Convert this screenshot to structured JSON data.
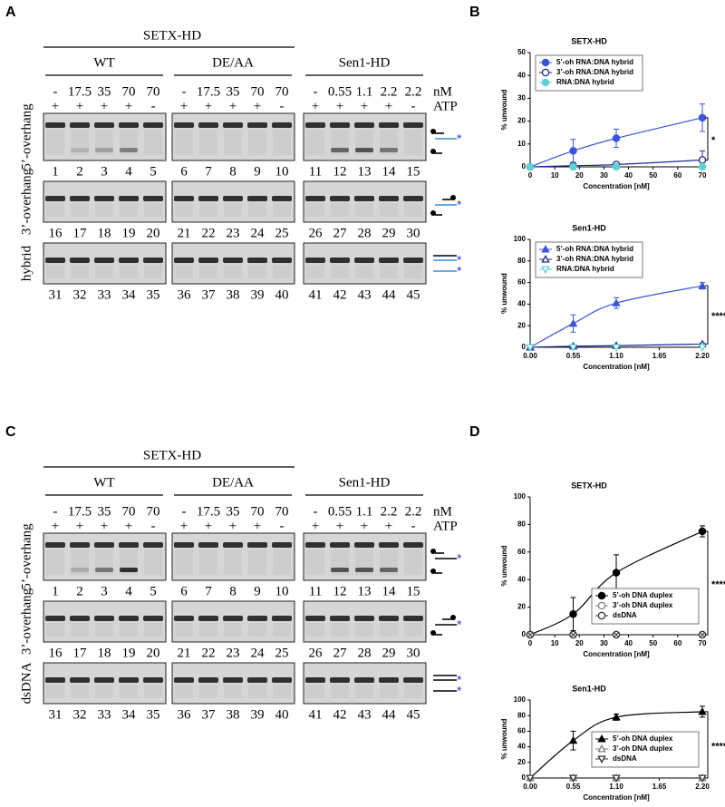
{
  "panels": [
    {
      "label": "A",
      "enzyme": "SETX-HD",
      "unit": "nM",
      "atp_label": "ATP",
      "groups": [
        {
          "name": "WT",
          "conc": [
            "-",
            "17.5",
            "35",
            "70",
            "70"
          ],
          "atp": [
            "+",
            "+",
            "+",
            "+",
            "-"
          ]
        },
        {
          "name": "DE/AA",
          "conc": [
            "-",
            "17.5",
            "35",
            "70",
            "70"
          ],
          "atp": [
            "+",
            "+",
            "+",
            "+",
            "-"
          ]
        },
        {
          "name": "Sen1-HD",
          "conc": [
            "-",
            "0.55",
            "1.1",
            "2.2",
            "2.2"
          ],
          "atp": [
            "+",
            "+",
            "+",
            "+",
            "-"
          ]
        }
      ],
      "rows": [
        {
          "label": "5’-overhang",
          "lanes": [
            [
              1,
              2,
              3,
              4,
              5
            ],
            [
              6,
              7,
              8,
              9,
              10
            ],
            [
              11,
              12,
              13,
              14,
              15
            ]
          ]
        },
        {
          "label": "3’-overhang",
          "lanes": [
            [
              16,
              17,
              18,
              19,
              20
            ],
            [
              21,
              22,
              23,
              24,
              25
            ],
            [
              26,
              27,
              28,
              29,
              30
            ]
          ]
        },
        {
          "label": "hybrid",
          "lanes": [
            [
              31,
              32,
              33,
              34,
              35
            ],
            [
              36,
              37,
              38,
              39,
              40
            ],
            [
              41,
              42,
              43,
              44,
              45
            ]
          ]
        }
      ]
    },
    {
      "label": "C",
      "enzyme": "SETX-HD",
      "unit": "nM",
      "atp_label": "ATP",
      "groups": [
        {
          "name": "WT",
          "conc": [
            "-",
            "17.5",
            "35",
            "70",
            "70"
          ],
          "atp": [
            "+",
            "+",
            "+",
            "+",
            "-"
          ]
        },
        {
          "name": "DE/AA",
          "conc": [
            "-",
            "17.5",
            "35",
            "70",
            "70"
          ],
          "atp": [
            "+",
            "+",
            "+",
            "+",
            "-"
          ]
        },
        {
          "name": "Sen1-HD",
          "conc": [
            "-",
            "0.55",
            "1.1",
            "2.2",
            "2.2"
          ],
          "atp": [
            "+",
            "+",
            "+",
            "+",
            "-"
          ]
        }
      ],
      "rows": [
        {
          "label": "5’-overhang",
          "lanes": [
            [
              1,
              2,
              3,
              4,
              5
            ],
            [
              6,
              7,
              8,
              9,
              10
            ],
            [
              11,
              12,
              13,
              14,
              15
            ]
          ]
        },
        {
          "label": "3’-overhang",
          "lanes": [
            [
              16,
              17,
              18,
              19,
              20
            ],
            [
              21,
              22,
              23,
              24,
              25
            ],
            [
              26,
              27,
              28,
              29,
              30
            ]
          ]
        },
        {
          "label": "dsDNA",
          "lanes": [
            [
              31,
              32,
              33,
              34,
              35
            ],
            [
              36,
              37,
              38,
              39,
              40
            ],
            [
              41,
              42,
              43,
              44,
              45
            ]
          ]
        }
      ]
    }
  ],
  "chart_labels": [
    "B",
    "D"
  ],
  "chart_data": [
    {
      "type": "line",
      "title": "SETX-HD",
      "xlabel": "Concentration [nM]",
      "ylabel": "% unwound",
      "x": [
        0,
        17.5,
        35,
        70
      ],
      "xlim": [
        0,
        70
      ],
      "xticks": [
        0,
        10,
        20,
        30,
        40,
        50,
        60,
        70
      ],
      "ylim": [
        0,
        50
      ],
      "yticks": [
        0,
        10,
        20,
        30,
        40,
        50
      ],
      "legend": "upper left",
      "annotation": "*",
      "series": [
        {
          "name": "5’-oh RNA:DNA hybrid",
          "color": "#3b55d6",
          "marker": "circle",
          "line": true,
          "values": [
            0,
            7,
            12.5,
            21.5
          ],
          "errors": [
            0,
            5,
            4,
            6
          ]
        },
        {
          "name": "3’-oh RNA:DNA hybrid",
          "color": "#1c2a8f",
          "marker": "circle-open",
          "line": true,
          "values": [
            0,
            0.5,
            1,
            3
          ],
          "errors": [
            0,
            1,
            1,
            4
          ]
        },
        {
          "name": "RNA:DNA hybrid",
          "color": "#5fd0d4",
          "marker": "circle",
          "line": false,
          "values": [
            0,
            0,
            0,
            0
          ],
          "errors": [
            0,
            0,
            0,
            0
          ]
        }
      ]
    },
    {
      "type": "line",
      "title": "Sen1-HD",
      "xlabel": "Concentration [nM]",
      "ylabel": "% unwound",
      "x": [
        0,
        0.55,
        1.1,
        2.2
      ],
      "xlim": [
        0,
        2.2
      ],
      "xticks": [
        {
          "value": 0,
          "label": "0.00"
        },
        0.55,
        {
          "value": 1.1,
          "label": "1.10"
        },
        1.65,
        {
          "value": 2.2,
          "label": "2.20"
        }
      ],
      "ylim": [
        0,
        100
      ],
      "yticks": [
        0,
        20,
        40,
        60,
        80,
        100
      ],
      "legend": "upper left",
      "annotation": "****",
      "series": [
        {
          "name": "5’-oh RNA:DNA hybrid",
          "color": "#3b55d6",
          "marker": "triangle",
          "line": true,
          "values": [
            0,
            22,
            41,
            57
          ],
          "errors": [
            0,
            8,
            5,
            3
          ]
        },
        {
          "name": "3’-oh RNA:DNA hybrid",
          "color": "#1c2a8f",
          "marker": "triangle-open",
          "line": true,
          "values": [
            0,
            1,
            1.5,
            3
          ],
          "errors": [
            0,
            1,
            1,
            1
          ]
        },
        {
          "name": "RNA:DNA hybrid",
          "color": "#5fd0d4",
          "marker": "triangle-down",
          "line": false,
          "values": [
            0,
            0,
            0,
            0
          ],
          "errors": [
            0,
            0,
            0,
            0
          ]
        }
      ]
    },
    {
      "type": "line",
      "title": "SETX-HD",
      "xlabel": "Concentration [nM]",
      "ylabel": "% unwound",
      "x": [
        0,
        17.5,
        35,
        70
      ],
      "xlim": [
        0,
        70
      ],
      "xticks": [
        0,
        10,
        20,
        30,
        40,
        50,
        60,
        70
      ],
      "ylim": [
        0,
        100
      ],
      "yticks": [
        0,
        20,
        40,
        60,
        80,
        100
      ],
      "legend": "lower right",
      "annotation": "****",
      "series": [
        {
          "name": "5’-oh DNA duplex",
          "color": "#000000",
          "marker": "circle",
          "line": true,
          "values": [
            0,
            15,
            45,
            75
          ],
          "errors": [
            0,
            12,
            13,
            4
          ]
        },
        {
          "name": "3’-oh DNA duplex",
          "color": "#7f7f7f",
          "marker": "circle-open",
          "line": false,
          "values": [
            0,
            0,
            0,
            0
          ],
          "errors": [
            0,
            0,
            0,
            0
          ]
        },
        {
          "name": "dsDNA",
          "color": "#333333",
          "marker": "circle-cross",
          "line": false,
          "values": [
            0,
            0,
            0,
            0
          ],
          "errors": [
            0,
            0,
            0,
            0
          ]
        }
      ]
    },
    {
      "type": "line",
      "title": "Sen1-HD",
      "xlabel": "Concentration [nM]",
      "ylabel": "% unwound",
      "x": [
        0,
        0.55,
        1.1,
        2.2
      ],
      "xlim": [
        0,
        2.2
      ],
      "xticks": [
        {
          "value": 0,
          "label": "0.00"
        },
        0.55,
        {
          "value": 1.1,
          "label": "1.10"
        },
        1.65,
        {
          "value": 2.2,
          "label": "2.20"
        }
      ],
      "ylim": [
        0,
        100
      ],
      "yticks": [
        0,
        20,
        40,
        60,
        80,
        100
      ],
      "legend": "lower right",
      "annotation": "****",
      "series": [
        {
          "name": "5’-oh DNA duplex",
          "color": "#000000",
          "marker": "triangle",
          "line": true,
          "values": [
            0,
            48,
            78,
            85
          ],
          "errors": [
            0,
            12,
            4,
            7
          ]
        },
        {
          "name": "3’-oh DNA duplex",
          "color": "#7f7f7f",
          "marker": "triangle-open",
          "line": false,
          "values": [
            0,
            0,
            0,
            0
          ],
          "errors": [
            0,
            0,
            0,
            0
          ]
        },
        {
          "name": "dsDNA",
          "color": "#333333",
          "marker": "triangle-down",
          "line": false,
          "values": [
            0,
            0,
            0,
            0
          ],
          "errors": [
            0,
            0,
            0,
            0
          ]
        }
      ]
    }
  ]
}
